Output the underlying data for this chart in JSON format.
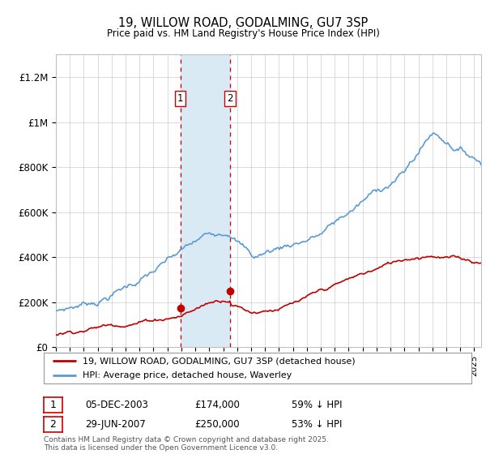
{
  "title": "19, WILLOW ROAD, GODALMING, GU7 3SP",
  "subtitle": "Price paid vs. HM Land Registry's House Price Index (HPI)",
  "ylim": [
    0,
    1300000
  ],
  "yticks": [
    0,
    200000,
    400000,
    600000,
    800000,
    1000000,
    1200000
  ],
  "ytick_labels": [
    "£0",
    "£200K",
    "£400K",
    "£600K",
    "£800K",
    "£1M",
    "£1.2M"
  ],
  "hpi_color": "#5b9bd5",
  "price_color": "#c00000",
  "shaded_color": "#daeaf5",
  "vline_color": "#cc0000",
  "sale1_date_num": 2003.92,
  "sale2_date_num": 2007.49,
  "sale1_price": 174000,
  "sale2_price": 250000,
  "legend_label_price": "19, WILLOW ROAD, GODALMING, GU7 3SP (detached house)",
  "legend_label_hpi": "HPI: Average price, detached house, Waverley",
  "table_row1": [
    "1",
    "05-DEC-2003",
    "£174,000",
    "59% ↓ HPI"
  ],
  "table_row2": [
    "2",
    "29-JUN-2007",
    "£250,000",
    "53% ↓ HPI"
  ],
  "footnote": "Contains HM Land Registry data © Crown copyright and database right 2025.\nThis data is licensed under the Open Government Licence v3.0.",
  "background_color": "#ffffff",
  "grid_color": "#cccccc",
  "xlim_left": 1995,
  "xlim_right": 2025.5
}
